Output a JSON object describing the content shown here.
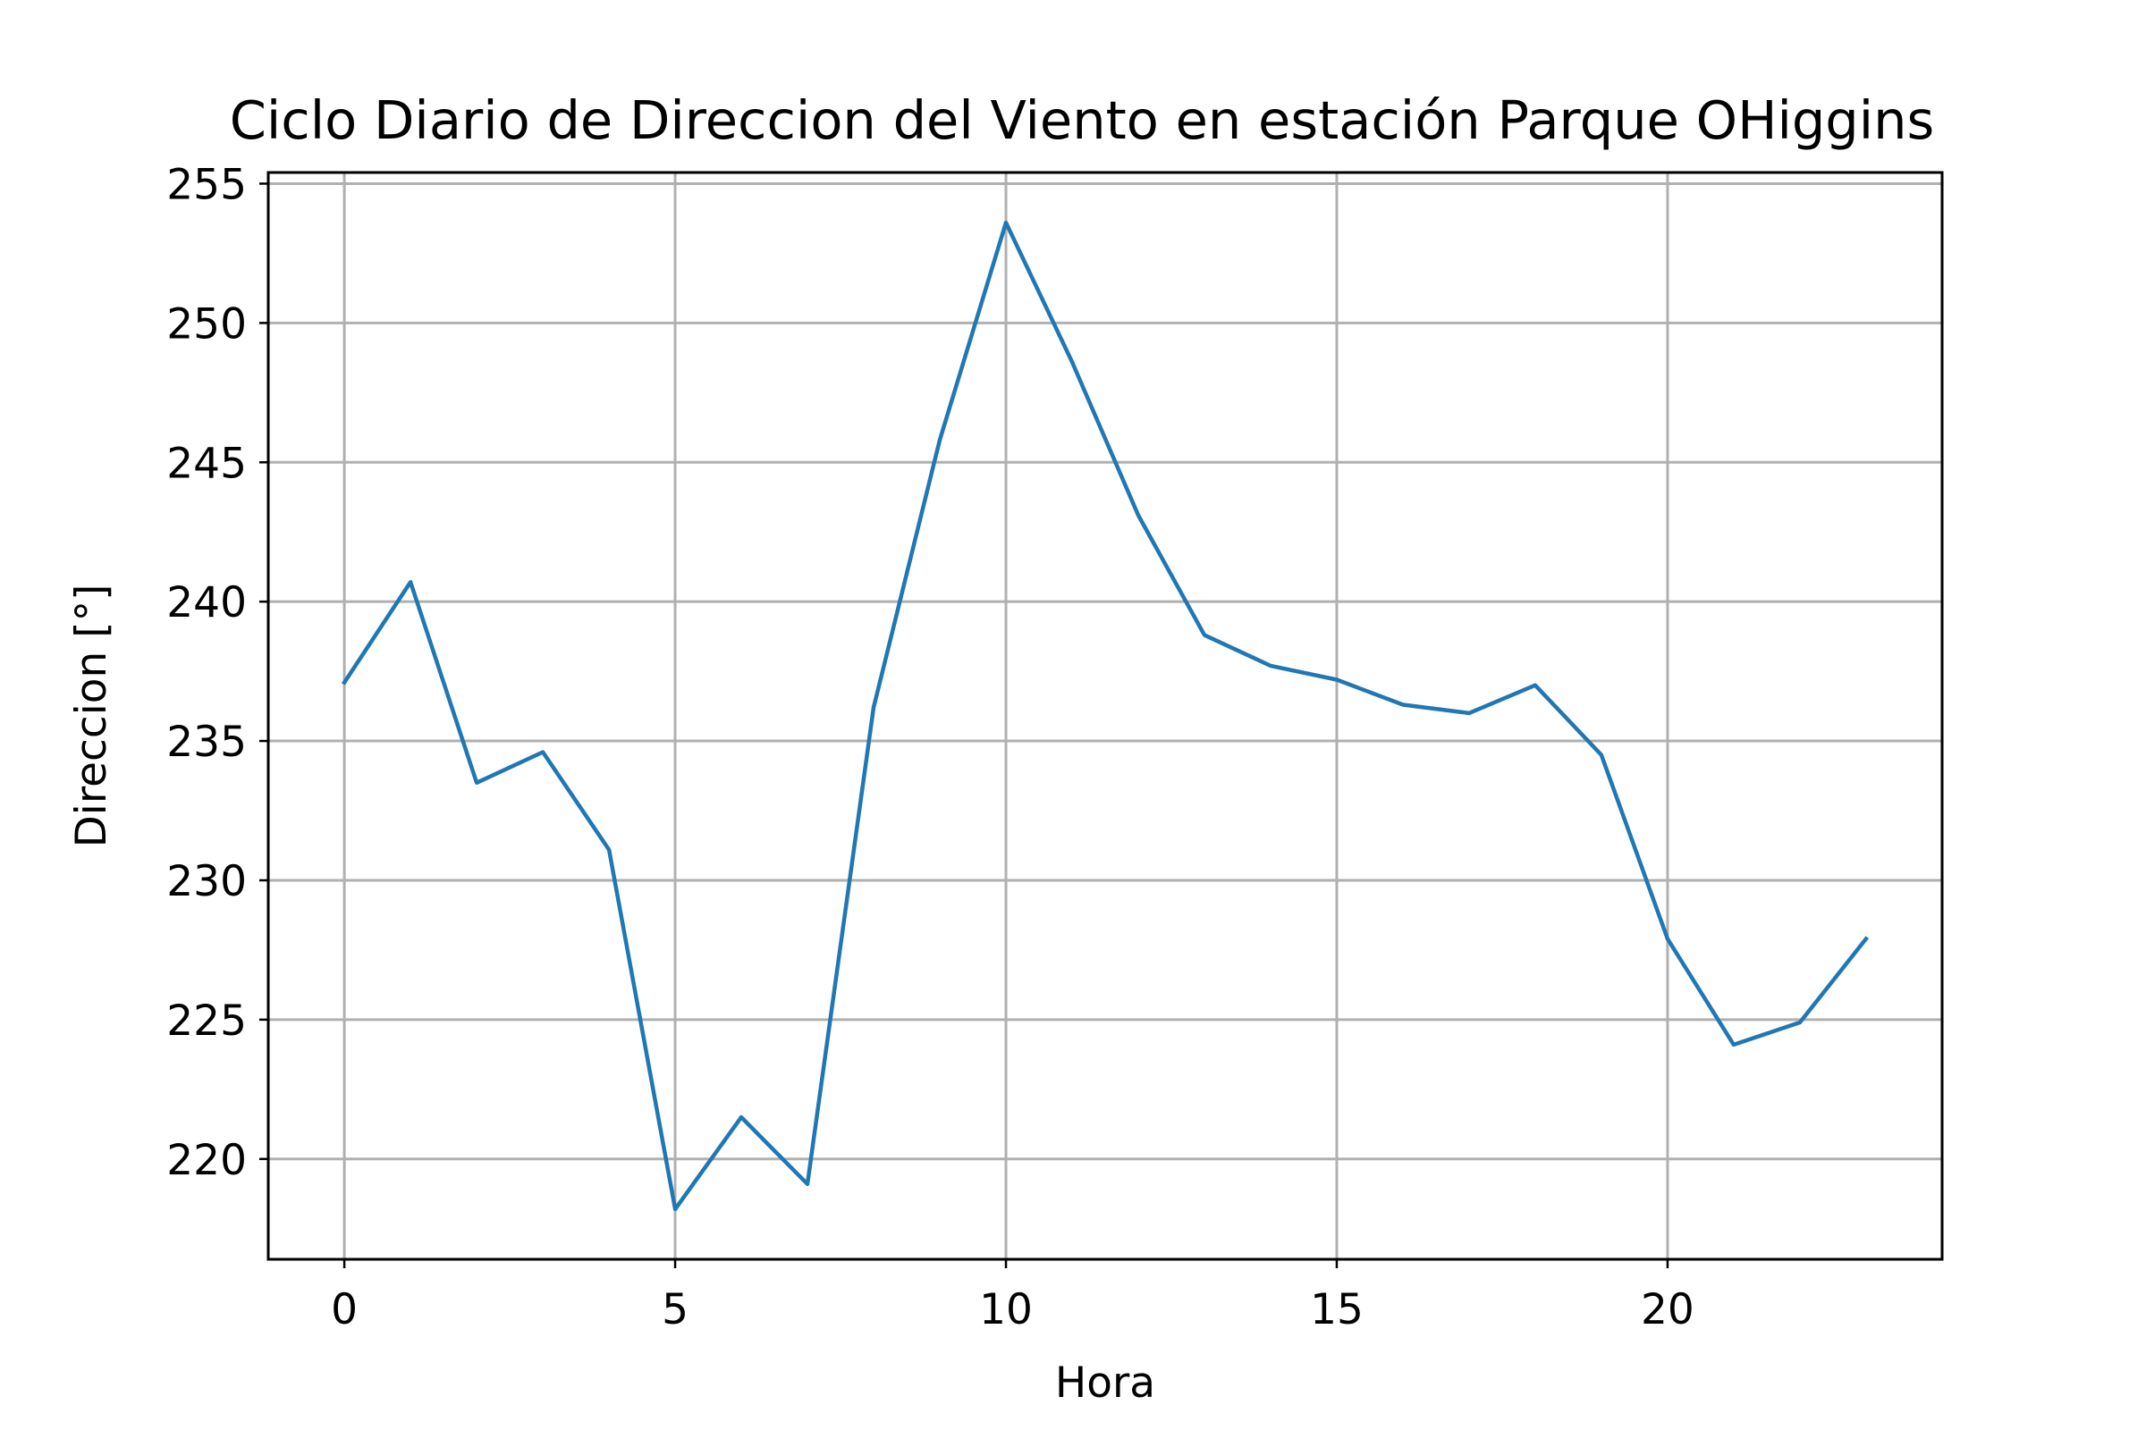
{
  "chart_data": {
    "type": "line",
    "title": "Ciclo Diario de Direccion del Viento en estación Parque OHiggins",
    "xlabel": "Hora",
    "ylabel": "Direccion [°]",
    "xlim": [
      -1.15,
      24.15
    ],
    "ylim": [
      216.4,
      255.4
    ],
    "xticks": [
      0,
      5,
      10,
      15,
      20
    ],
    "yticks": [
      220,
      225,
      230,
      235,
      240,
      245,
      250,
      255
    ],
    "grid": true,
    "legend": "none",
    "series": [
      {
        "color": "#1f77b4",
        "x": [
          0,
          1,
          2,
          3,
          4,
          5,
          6,
          7,
          8,
          9,
          10,
          11,
          12,
          13,
          14,
          15,
          16,
          17,
          18,
          19,
          20,
          21,
          22,
          23
        ],
        "values": [
          237.1,
          240.7,
          233.5,
          234.6,
          231.1,
          218.2,
          221.5,
          219.1,
          236.2,
          245.8,
          253.6,
          248.6,
          243.1,
          238.8,
          237.7,
          237.2,
          236.3,
          236.0,
          237.0,
          234.5,
          227.9,
          224.1,
          224.9,
          227.9
        ]
      }
    ]
  }
}
